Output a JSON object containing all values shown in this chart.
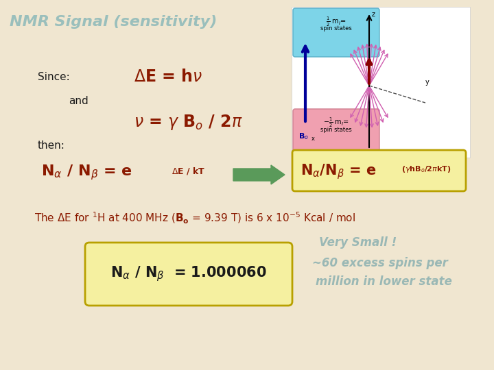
{
  "title": "NMR Signal (sensitivity)",
  "title_color": "#9abfbc",
  "title_fontsize": 16,
  "bg_color": "#f0e6d0",
  "text_color_dark": "#8b1a00",
  "text_color_black": "#1a1a1a",
  "text_color_gray": "#9ab8b5",
  "since_label": "Since:",
  "and_label": "and",
  "then_label": "then:",
  "box1_color": "#f5f0a0",
  "box1_border": "#b8a000",
  "arrow_color": "#5a9a5a",
  "very_small_text": "Very Small !",
  "excess_spins_text": "~60 excess spins per",
  "lower_state_text": "million in lower state"
}
